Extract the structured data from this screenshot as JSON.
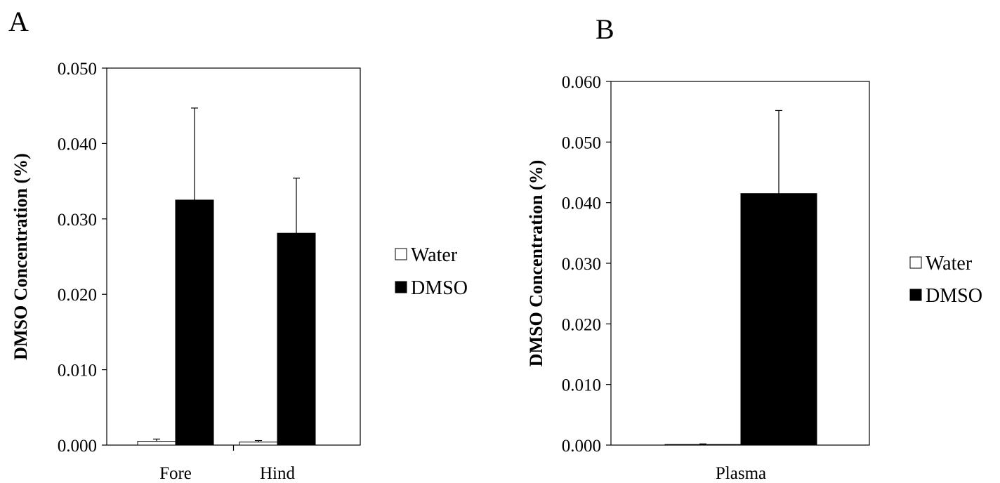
{
  "chart_data": [
    {
      "type": "bar",
      "panel_label": "A",
      "title": "",
      "xlabel": "",
      "ylabel": "DMSO Concentration (%)",
      "categories": [
        "Fore",
        "Hind"
      ],
      "ylim": [
        0,
        0.05
      ],
      "yticks": [
        "0.000",
        "0.010",
        "0.020",
        "0.030",
        "0.040",
        "0.050"
      ],
      "series": [
        {
          "name": "Water",
          "color": "#ffffff",
          "values": [
            0.0005,
            0.0004
          ],
          "error": [
            0.0003,
            0.0002
          ]
        },
        {
          "name": "DMSO",
          "color": "#000000",
          "values": [
            0.0325,
            0.0281
          ],
          "error": [
            0.0122,
            0.0073
          ]
        }
      ],
      "legend": "right",
      "grid": false
    },
    {
      "type": "bar",
      "panel_label": "B",
      "title": "",
      "xlabel": "",
      "ylabel": "DMSO Concentration (%)",
      "categories": [
        "Plasma"
      ],
      "ylim": [
        0,
        0.06
      ],
      "yticks": [
        "0.000",
        "0.010",
        "0.020",
        "0.030",
        "0.040",
        "0.050",
        "0.060"
      ],
      "series": [
        {
          "name": "Water",
          "color": "#ffffff",
          "values": [
            0.0001
          ],
          "error": [
            0.0001
          ]
        },
        {
          "name": "DMSO",
          "color": "#000000",
          "values": [
            0.0415
          ],
          "error": [
            0.0137
          ]
        }
      ],
      "legend": "right",
      "grid": false
    }
  ]
}
